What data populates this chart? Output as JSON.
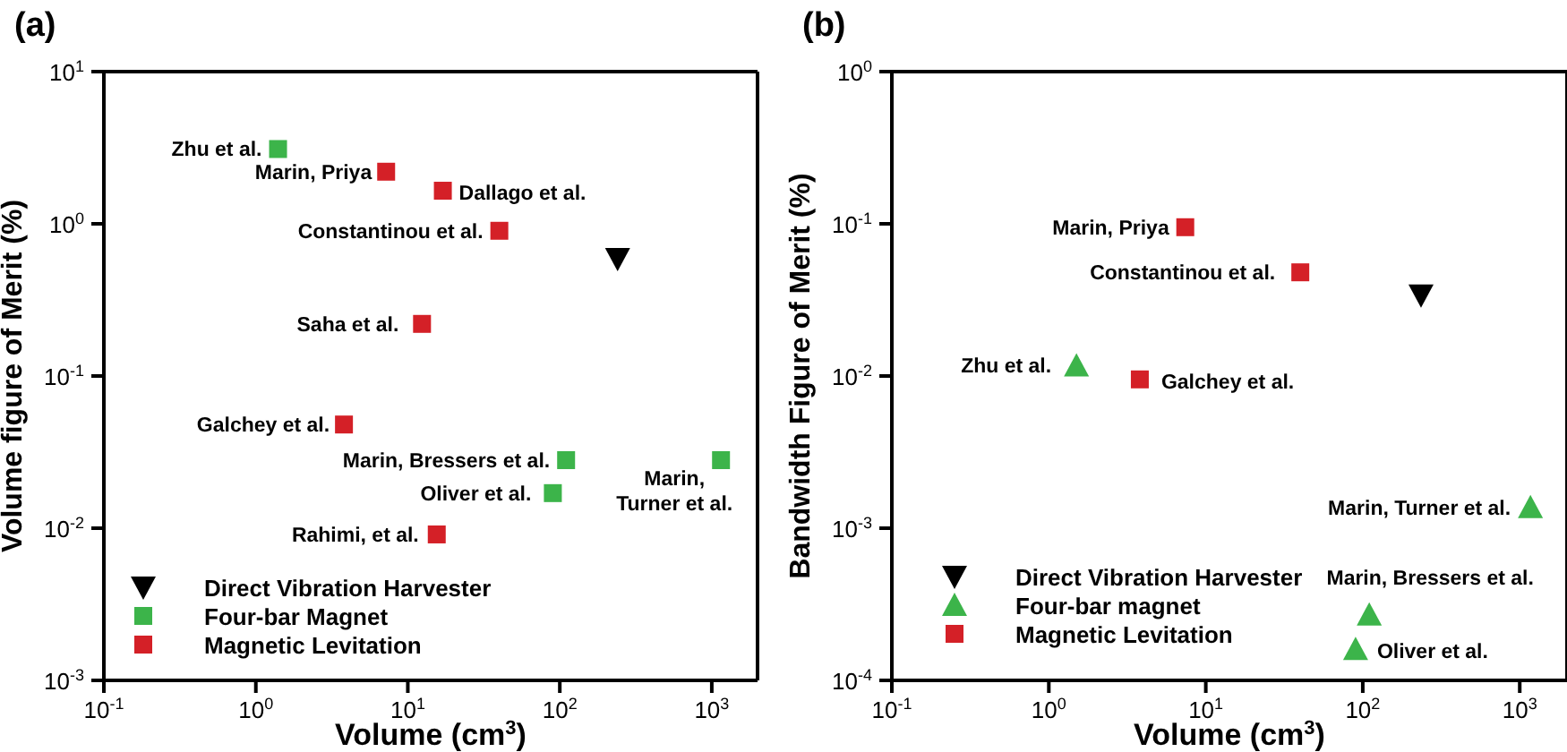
{
  "chart_data": [
    {
      "type": "scatter",
      "title": "(a)",
      "xlabel": "Volume (cm$^{3}$)",
      "ylabel": "Volume figure of Merit (%)",
      "log": "xy",
      "xlim": [
        0.1,
        2000
      ],
      "ylim": [
        0.001,
        10
      ],
      "xticks": [
        {
          "value": 0.1,
          "label": "10$^{-1}$"
        },
        {
          "value": 1,
          "label": "10$^{0}$"
        },
        {
          "value": 10,
          "label": "10$^{1}$"
        },
        {
          "value": 100,
          "label": "10$^{2}$"
        },
        {
          "value": 1000,
          "label": "10$^{3}$"
        }
      ],
      "yticks": [
        {
          "value": 0.001,
          "label": "10$^{-3}$"
        },
        {
          "value": 0.01,
          "label": "10$^{-2}$"
        },
        {
          "value": 0.1,
          "label": "10$^{-1}$"
        },
        {
          "value": 1,
          "label": "10$^{0}$"
        },
        {
          "value": 10,
          "label": "10$^{1}$"
        }
      ],
      "legend": "bottom left",
      "series": [
        {
          "name": "Direct Vibration Harvester",
          "color": "#000000",
          "marker": "triangle",
          "x": [
            240
          ],
          "values": [
            0.59
          ]
        },
        {
          "name": "Four-bar Magnet",
          "color": "#3cb44a",
          "marker": "square",
          "x": [
            1.4,
            110,
            90,
            1150
          ],
          "values": [
            3.1,
            0.028,
            0.017,
            0.028
          ]
        },
        {
          "name": "Magnetic Levitation",
          "color": "#d42027",
          "marker": "square",
          "x": [
            7.2,
            17,
            40,
            12.4,
            3.8,
            15.5
          ],
          "values": [
            2.2,
            1.65,
            0.9,
            0.22,
            0.048,
            0.0091
          ]
        }
      ],
      "annotations": [
        {
          "text": "Zhu et al.",
          "x": 1.4,
          "y": 3.1
        },
        {
          "text": "Marin, Priya",
          "x": 7.2,
          "y": 2.2
        },
        {
          "text": "Dallago et al.",
          "x": 17,
          "y": 1.65
        },
        {
          "text": "Constantinou et al.",
          "x": 40,
          "y": 0.9
        },
        {
          "text": "Saha et al.",
          "x": 12.4,
          "y": 0.22
        },
        {
          "text": "Galchey et al.",
          "x": 3.8,
          "y": 0.048
        },
        {
          "text": "Marin, Bressers et al.",
          "x": 110,
          "y": 0.028
        },
        {
          "text": "Oliver et al.",
          "x": 90,
          "y": 0.017
        },
        {
          "text": "Marin, Turner et al.",
          "x": 1150,
          "y": 0.028
        },
        {
          "text": "Rahimi, et al.",
          "x": 15.5,
          "y": 0.0091
        }
      ]
    },
    {
      "type": "scatter",
      "title": "(b)",
      "xlabel": "Volume (cm$^{3}$)",
      "ylabel": "Bandwidth Figure of Merit (%)",
      "log": "xy",
      "xlim": [
        0.1,
        2000
      ],
      "ylim": [
        0.0001,
        1
      ],
      "xticks": [
        {
          "value": 0.1,
          "label": "10$^{-1}$"
        },
        {
          "value": 1,
          "label": "10$^{0}$"
        },
        {
          "value": 10,
          "label": "10$^{1}$"
        },
        {
          "value": 100,
          "label": "10$^{2}$"
        },
        {
          "value": 1000,
          "label": "10$^{3}$"
        }
      ],
      "yticks": [
        {
          "value": 0.0001,
          "label": "10$^{-4}$"
        },
        {
          "value": 0.001,
          "label": "10$^{-3}$"
        },
        {
          "value": 0.01,
          "label": "10$^{-2}$"
        },
        {
          "value": 0.1,
          "label": "10$^{-1}$"
        },
        {
          "value": 1,
          "label": "10$^{0}$"
        }
      ],
      "legend": "bottom left",
      "series": [
        {
          "name": "Direct Vibration Harvester",
          "color": "#000000",
          "marker": "triangle",
          "x": [
            235
          ],
          "values": [
            0.034
          ]
        },
        {
          "name": "Four-bar magnet",
          "color": "#3cb44a",
          "marker": "triangle",
          "x": [
            1.5,
            1170,
            110,
            90
          ],
          "values": [
            0.0117,
            0.00137,
            0.00027,
            0.00016
          ]
        },
        {
          "name": "Magnetic Levitation",
          "color": "#d42027",
          "marker": "square",
          "x": [
            7.4,
            40,
            3.8
          ],
          "values": [
            0.095,
            0.048,
            0.0095
          ]
        }
      ],
      "annotations": [
        {
          "text": "Marin, Priya",
          "x": 7.4,
          "y": 0.095
        },
        {
          "text": "Constantinou et al.",
          "x": 40,
          "y": 0.048
        },
        {
          "text": "Zhu et al.",
          "x": 1.5,
          "y": 0.0117
        },
        {
          "text": "Galchey et al.",
          "x": 3.8,
          "y": 0.0095
        },
        {
          "text": "Marin, Turner et al.",
          "x": 1170,
          "y": 0.00137
        },
        {
          "text": "Marin, Bressers et al.",
          "x": 110,
          "y": 0.00027
        },
        {
          "text": "Oliver et al.",
          "x": 90,
          "y": 0.00016
        }
      ]
    }
  ]
}
